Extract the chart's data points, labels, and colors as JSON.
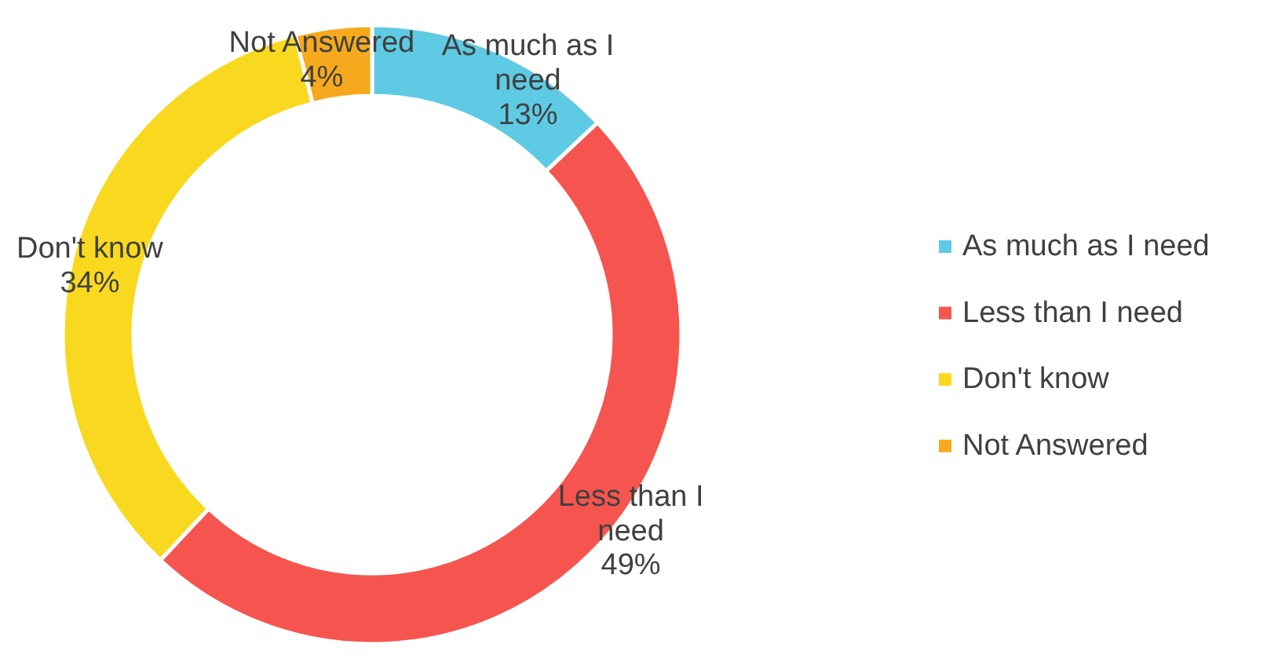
{
  "chart_data": {
    "type": "donut",
    "categories": [
      "As much as I need",
      "Less than I need",
      "Don't know",
      "Not Answered"
    ],
    "values": [
      13,
      49,
      34,
      4
    ],
    "value_labels": [
      "13%",
      "49%",
      "34%",
      "4%"
    ],
    "colors": [
      "#5ecae4",
      "#f6554f",
      "#f9d91f",
      "#f6a91c"
    ],
    "legend": "right"
  }
}
